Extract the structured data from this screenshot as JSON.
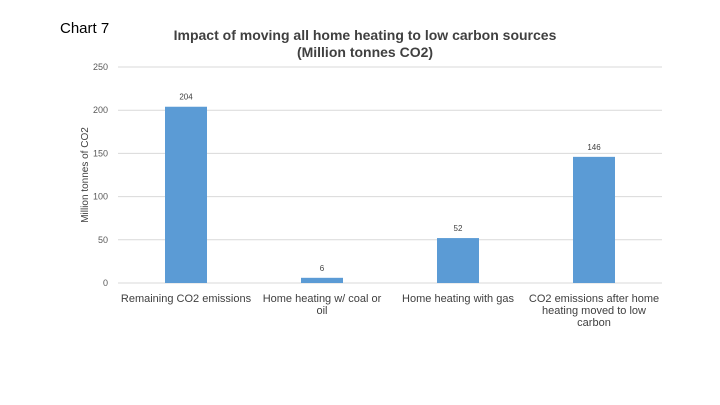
{
  "page_label": "Chart 7",
  "chart_data": {
    "type": "bar",
    "title_lines": [
      "Impact of moving all home heating to low carbon sources",
      "(Million tonnes CO2)"
    ],
    "categories": [
      [
        "Remaining CO2 emissions"
      ],
      [
        "Home heating w/ coal or",
        "oil"
      ],
      [
        "Home heating with gas"
      ],
      [
        "CO2 emissions after home",
        "heating moved to low",
        "carbon"
      ]
    ],
    "values": [
      204,
      6,
      52,
      146
    ],
    "data_labels": [
      "204",
      "6",
      "52",
      "146"
    ],
    "ylabel": "Million tonnes of CO2",
    "xlabel": "",
    "ylim": [
      0,
      250
    ],
    "yticks": [
      0,
      50,
      100,
      150,
      200,
      250
    ],
    "grid": true,
    "legend": "none",
    "bar_color": "#5b9bd5",
    "grid_color": "#d9d9d9"
  }
}
